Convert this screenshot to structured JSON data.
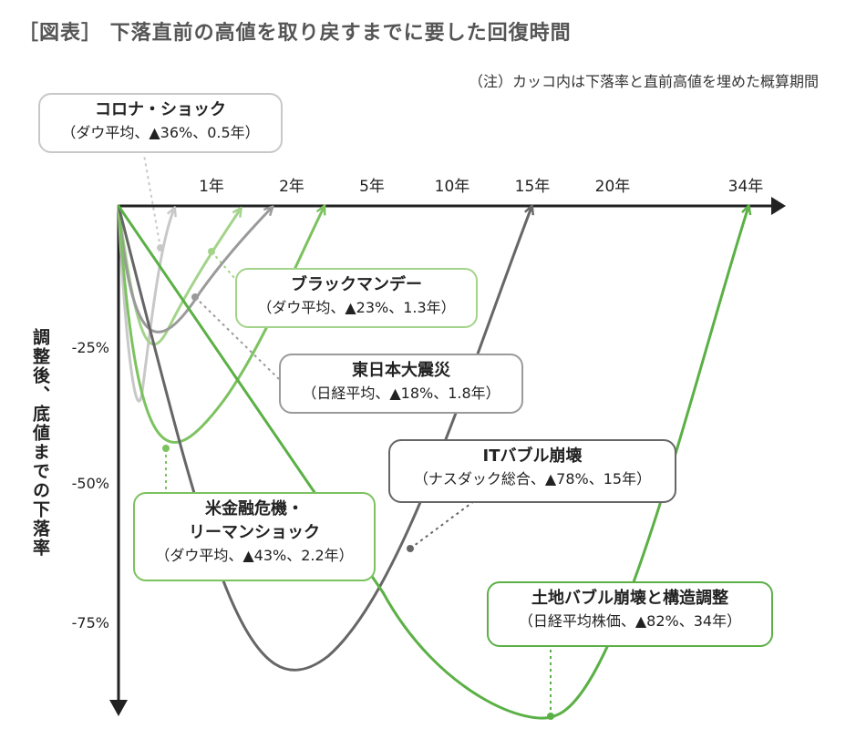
{
  "title": "［図表］ 下落直前の高値を取り戻すまでに要した回復時間",
  "note": "（注）カッコ内は下落率と直前高値を埋めた概算期間",
  "colors": {
    "light_gray": "#c8c8c8",
    "mid_gray": "#9a9a9a",
    "dark_gray": "#666666",
    "light_green": "#a3d48a",
    "mid_green": "#7cc25f",
    "green": "#5bb046",
    "axis": "#222222"
  },
  "chart_data": {
    "type": "line",
    "xlabel": "",
    "ylabel": "調整後、底値までの下落率",
    "x_tick_labels": [
      "1年",
      "2年",
      "5年",
      "10年",
      "15年",
      "20年",
      "34年"
    ],
    "y_tick_labels": [
      "-25%",
      "-50%",
      "-75%"
    ],
    "y_ticks": [
      -25,
      -50,
      -75
    ],
    "ylim": [
      -90,
      0
    ],
    "x_scale": "non-linear (compressed)",
    "series": [
      {
        "name": "コロナ・ショック",
        "index": "ダウ平均",
        "drawdown_pct": -36,
        "recovery_years": 0.5,
        "color_key": "light_gray",
        "label_title": "コロナ・ショック",
        "label_sub": "（ダウ平均、▲36%、0.5年）"
      },
      {
        "name": "ブラックマンデー",
        "index": "ダウ平均",
        "drawdown_pct": -23,
        "recovery_years": 1.3,
        "color_key": "light_green",
        "label_title": "ブラックマンデー",
        "label_sub": "（ダウ平均、▲23%、1.3年）"
      },
      {
        "name": "東日本大震災",
        "index": "日経平均",
        "drawdown_pct": -18,
        "recovery_years": 1.8,
        "color_key": "mid_gray",
        "label_title": "東日本大震災",
        "label_sub": "（日経平均、▲18%、1.8年）"
      },
      {
        "name": "米金融危機・リーマンショック",
        "index": "ダウ平均",
        "drawdown_pct": -43,
        "recovery_years": 2.2,
        "color_key": "mid_green",
        "label_title": "米金融危機・",
        "label_title2": "リーマンショック",
        "label_sub": "（ダウ平均、▲43%、2.2年）"
      },
      {
        "name": "ITバブル崩壊",
        "index": "ナスダック総合",
        "drawdown_pct": -78,
        "recovery_years": 15,
        "color_key": "dark_gray",
        "label_title": "ITバブル崩壊",
        "label_sub": "（ナスダック総合、▲78%、15年）"
      },
      {
        "name": "土地バブル崩壊と構造調整",
        "index": "日経平均株価",
        "drawdown_pct": -82,
        "recovery_years": 34,
        "color_key": "green",
        "label_title": "土地バブル崩壊と構造調整",
        "label_sub": "（日経平均株価、▲82%、34年）"
      }
    ]
  }
}
